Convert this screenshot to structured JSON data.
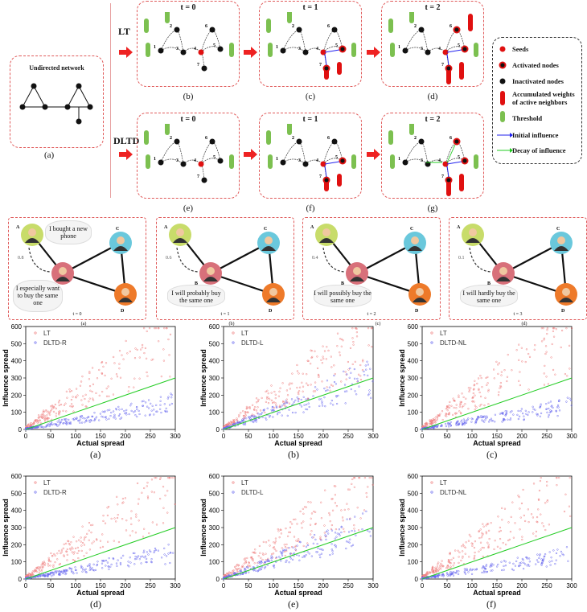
{
  "top": {
    "undirected_title": "Undirected network",
    "caption_a": "(a)",
    "lt_label": "LT",
    "dltd_label": "DLTD",
    "panels": [
      {
        "t": "t = 0",
        "cap": "(b)"
      },
      {
        "t": "t = 1",
        "cap": "(c)"
      },
      {
        "t": "t = 2",
        "cap": "(d)"
      },
      {
        "t": "t = 0",
        "cap": "(e)"
      },
      {
        "t": "t = 1",
        "cap": "(f)"
      },
      {
        "t": "t = 2",
        "cap": "(g)"
      }
    ],
    "legend": {
      "seeds": "Seeds",
      "activated": "Activated nodes",
      "inactivated": "Inactivated nodes",
      "accum": "Accumulated weights of active neighbors",
      "threshold": "Threshold",
      "initial": "Initial influence",
      "decay": "Decay of influence"
    },
    "node_labels": [
      "1",
      "2",
      "3",
      "4",
      "5",
      "6",
      "7"
    ]
  },
  "social": {
    "panels": [
      {
        "bubble": "I especially want to buy the same one",
        "t": "t = 0",
        "cap": "(a)",
        "w": "0.8"
      },
      {
        "bubble": "I will probably buy the same one",
        "t": "t = 1",
        "cap": "(b)",
        "w": "0.6"
      },
      {
        "bubble": "I will possibly buy the same one",
        "t": "t = 2",
        "cap": "(c)",
        "w": "0.4"
      },
      {
        "bubble": "I will hardly buy the same one",
        "t": "t = 3",
        "cap": "(d)",
        "w": "0.1"
      }
    ],
    "first_bubble": "I bought a new phone",
    "names": [
      "A",
      "B",
      "C",
      "D"
    ]
  },
  "chart_data": [
    {
      "type": "scatter",
      "caption": "(a)",
      "series": [
        {
          "name": "LT"
        },
        {
          "name": "DLTD-R"
        }
      ],
      "xlabel": "Actual spread",
      "ylabel": "Influence spread",
      "xlim": [
        0,
        300
      ],
      "ylim": [
        0,
        600
      ],
      "xticks": [
        "0",
        "50",
        "100",
        "150",
        "200",
        "250",
        "300"
      ],
      "yticks": [
        "0",
        "100",
        "200",
        "300",
        "400",
        "500",
        "600"
      ]
    },
    {
      "type": "scatter",
      "caption": "(b)",
      "series": [
        {
          "name": "LT"
        },
        {
          "name": "DLTD-L"
        }
      ],
      "xlabel": "Actual spread",
      "ylabel": "Influence spread",
      "xlim": [
        0,
        300
      ],
      "ylim": [
        0,
        600
      ],
      "xticks": [
        "0",
        "50",
        "100",
        "150",
        "200",
        "250",
        "300"
      ],
      "yticks": [
        "0",
        "100",
        "200",
        "300",
        "400",
        "500",
        "600"
      ]
    },
    {
      "type": "scatter",
      "caption": "(c)",
      "series": [
        {
          "name": "LT"
        },
        {
          "name": "DLTD-NL"
        }
      ],
      "xlabel": "Actual spread",
      "ylabel": "Influence spread",
      "xlim": [
        0,
        300
      ],
      "ylim": [
        0,
        600
      ],
      "xticks": [
        "0",
        "50",
        "100",
        "150",
        "200",
        "250",
        "300"
      ],
      "yticks": [
        "0",
        "100",
        "200",
        "300",
        "400",
        "500",
        "600"
      ]
    },
    {
      "type": "scatter",
      "caption": "(d)",
      "series": [
        {
          "name": "LT"
        },
        {
          "name": "DLTD-R"
        }
      ],
      "xlabel": "Actual spread",
      "ylabel": "Influence spread",
      "xlim": [
        0,
        300
      ],
      "ylim": [
        0,
        600
      ],
      "xticks": [
        "0",
        "50",
        "100",
        "150",
        "200",
        "250",
        "300"
      ],
      "yticks": [
        "0",
        "100",
        "200",
        "300",
        "400",
        "500",
        "600"
      ]
    },
    {
      "type": "scatter",
      "caption": "(e)",
      "series": [
        {
          "name": "LT"
        },
        {
          "name": "DLTD-L"
        }
      ],
      "xlabel": "Actual spread",
      "ylabel": "Influence spread",
      "xlim": [
        0,
        300
      ],
      "ylim": [
        0,
        600
      ],
      "xticks": [
        "0",
        "50",
        "100",
        "150",
        "200",
        "250",
        "300"
      ],
      "yticks": [
        "0",
        "100",
        "200",
        "300",
        "400",
        "500",
        "600"
      ]
    },
    {
      "type": "scatter",
      "caption": "(f)",
      "series": [
        {
          "name": "LT"
        },
        {
          "name": "DLTD-NL"
        }
      ],
      "xlabel": "Actual spread",
      "ylabel": "Influence spread",
      "xlim": [
        0,
        300
      ],
      "ylim": [
        0,
        600
      ],
      "xticks": [
        "0",
        "50",
        "100",
        "150",
        "200",
        "250",
        "300"
      ],
      "yticks": [
        "0",
        "100",
        "200",
        "300",
        "400",
        "500",
        "600"
      ]
    }
  ],
  "colors": {
    "lt": "#f08080",
    "dltd": "#6a6af0",
    "fit": "#22cc22",
    "frame": "#e05a5a",
    "seed": "#e01010",
    "threshold": "#7cc050"
  }
}
